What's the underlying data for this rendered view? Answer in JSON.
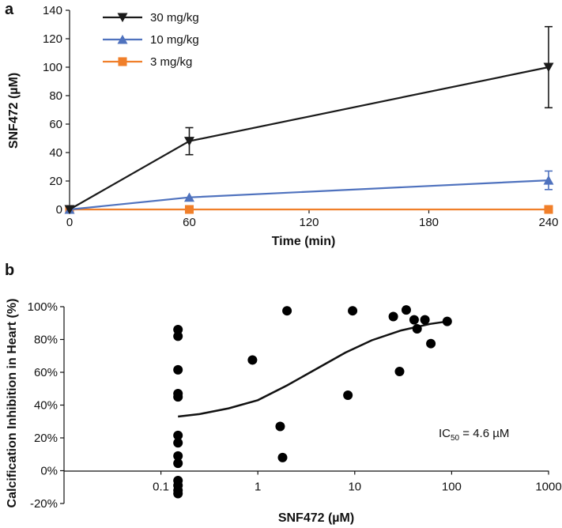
{
  "chart_data": [
    {
      "panel": "a",
      "type": "line",
      "title": "",
      "xlabel": "Time (min)",
      "ylabel": "SNF472 (µM)",
      "xlim": [
        0,
        240
      ],
      "ylim": [
        0,
        140
      ],
      "xticks": [
        "0",
        "60",
        "120",
        "180",
        "240"
      ],
      "xtick_values": [
        0,
        60,
        120,
        180,
        240
      ],
      "yticks": [
        "0",
        "20",
        "40",
        "60",
        "80",
        "100",
        "120",
        "140"
      ],
      "ytick_values": [
        0,
        20,
        40,
        60,
        80,
        100,
        120,
        140
      ],
      "x": [
        0,
        60,
        240
      ],
      "series": [
        {
          "name": "30 mg/kg",
          "color": "#1a1a1a",
          "marker": "triangle-down",
          "values": [
            0,
            48,
            100
          ],
          "error": [
            0,
            9.5,
            28.5
          ]
        },
        {
          "name": "10 mg/kg",
          "color": "#4f72be",
          "marker": "triangle-up",
          "values": [
            0,
            8.5,
            20.5
          ],
          "error": [
            0,
            0,
            6.5
          ]
        },
        {
          "name": "3 mg/kg",
          "color": "#f07f2a",
          "marker": "square",
          "values": [
            0,
            0,
            0
          ],
          "error": [
            0,
            0,
            0
          ]
        }
      ],
      "legend_position": "top-left"
    },
    {
      "panel": "b",
      "type": "scatter",
      "title": "",
      "xlabel": "SNF472 (µM)",
      "ylabel": "Calcification Inhibition in Heart (%)",
      "xscale": "log",
      "xlim": [
        0.01,
        1000
      ],
      "ylim": [
        -20,
        100
      ],
      "xticks": [
        "0.1",
        "1",
        "10",
        "100",
        "1000"
      ],
      "xtick_values": [
        0.1,
        1,
        10,
        100,
        1000
      ],
      "yticks": [
        "-20%",
        "0%",
        "20%",
        "40%",
        "60%",
        "80%",
        "100%"
      ],
      "ytick_values": [
        -20,
        0,
        20,
        40,
        60,
        80,
        100
      ],
      "points": [
        {
          "x": 0.15,
          "y": 86
        },
        {
          "x": 0.15,
          "y": 82
        },
        {
          "x": 0.15,
          "y": 61.5
        },
        {
          "x": 0.15,
          "y": 47
        },
        {
          "x": 0.15,
          "y": 45
        },
        {
          "x": 0.15,
          "y": 21.5
        },
        {
          "x": 0.15,
          "y": 17
        },
        {
          "x": 0.15,
          "y": 9
        },
        {
          "x": 0.15,
          "y": 4.5
        },
        {
          "x": 0.15,
          "y": -6
        },
        {
          "x": 0.15,
          "y": -9
        },
        {
          "x": 0.15,
          "y": -12
        },
        {
          "x": 0.15,
          "y": -14
        },
        {
          "x": 0.88,
          "y": 67.5
        },
        {
          "x": 1.7,
          "y": 27
        },
        {
          "x": 1.8,
          "y": 8
        },
        {
          "x": 2.0,
          "y": 97.5
        },
        {
          "x": 8.5,
          "y": 46
        },
        {
          "x": 9.5,
          "y": 97.5
        },
        {
          "x": 25,
          "y": 94
        },
        {
          "x": 29,
          "y": 60.5
        },
        {
          "x": 34,
          "y": 98
        },
        {
          "x": 41,
          "y": 92
        },
        {
          "x": 44,
          "y": 86.5
        },
        {
          "x": 53,
          "y": 92
        },
        {
          "x": 61,
          "y": 77.5
        },
        {
          "x": 90,
          "y": 91
        }
      ],
      "fit_curve": {
        "type": "sigmoid",
        "x": [
          0.15,
          0.25,
          0.5,
          1,
          2,
          4,
          8,
          15,
          30,
          60,
          90
        ],
        "y": [
          33,
          34.5,
          38,
          43,
          52,
          62,
          72,
          79.5,
          85.5,
          89.5,
          91
        ]
      },
      "annotation": {
        "base": "IC",
        "subscript": "50",
        "value": " = 4.6 µM"
      }
    }
  ]
}
